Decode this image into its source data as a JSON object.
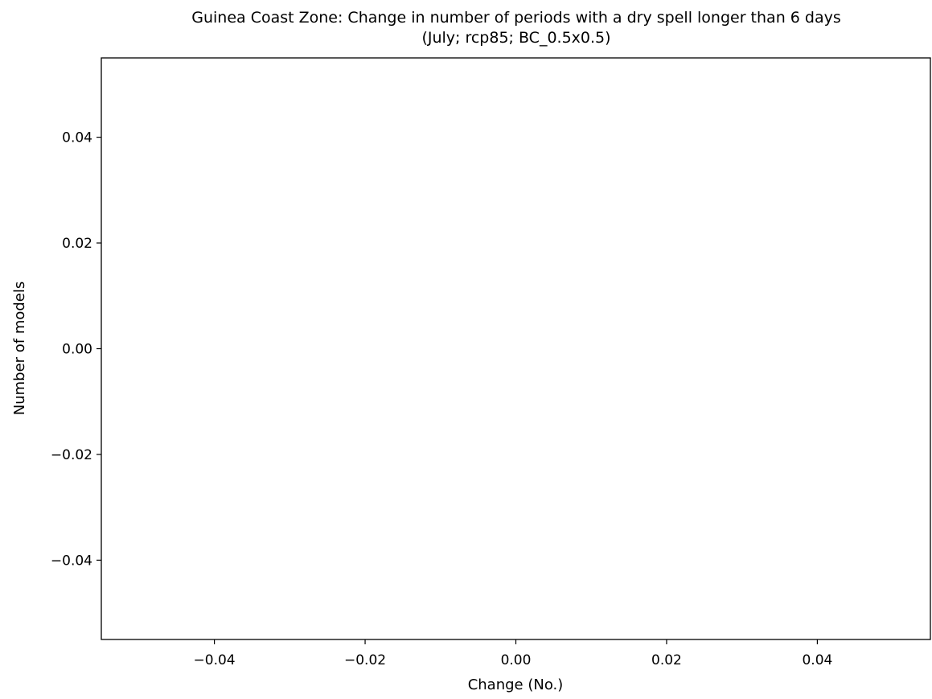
{
  "chart_data": {
    "type": "bar",
    "title": "Guinea Coast Zone: Change in number of periods with a dry spell longer than 6 days",
    "subtitle": "(July; rcp85; BC_0.5x0.5)",
    "xlabel": "Change (No.)",
    "ylabel": "Number of models",
    "xlim": [
      -0.055,
      0.055
    ],
    "ylim": [
      -0.055,
      0.055
    ],
    "xticks": [
      -0.04,
      -0.02,
      0.0,
      0.02,
      0.04
    ],
    "xtick_labels": [
      "−0.04",
      "−0.02",
      "0.00",
      "0.02",
      "0.04"
    ],
    "yticks": [
      -0.04,
      -0.02,
      0.0,
      0.02,
      0.04
    ],
    "ytick_labels": [
      "−0.04",
      "−0.02",
      "0.00",
      "0.02",
      "0.04"
    ],
    "values": [],
    "grid": false
  }
}
